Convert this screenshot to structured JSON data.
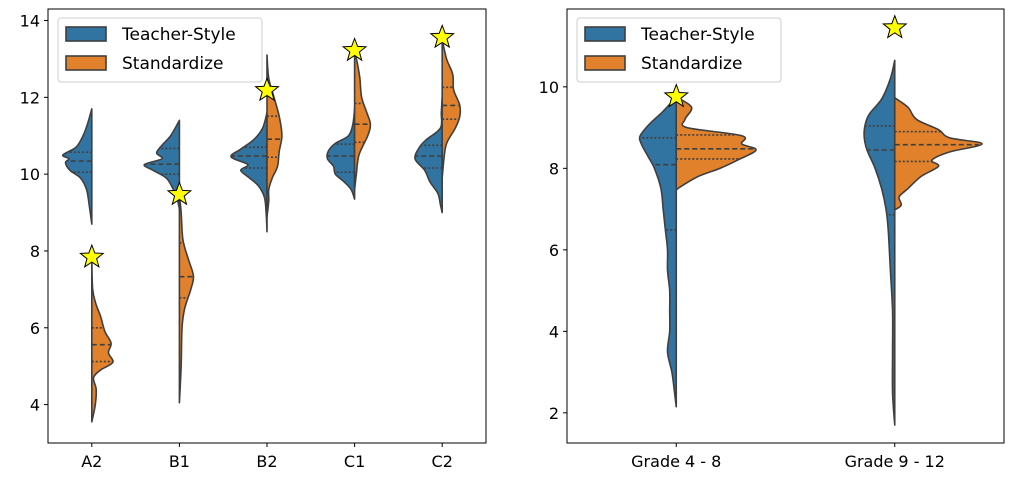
{
  "colors": {
    "Teacher-Style": "#3274a1",
    "Standardize": "#e1812c",
    "edge": "#3f3f3f",
    "star": "#ffff00"
  },
  "chart_data": [
    {
      "type": "violin",
      "split": true,
      "title": "",
      "xlabel": "",
      "ylabel": "",
      "ylim": [
        3.0,
        14.3
      ],
      "yticks": [
        4,
        6,
        8,
        10,
        12,
        14
      ],
      "categories": [
        "A2",
        "B1",
        "B2",
        "C1",
        "C2"
      ],
      "legend": {
        "position": "top-left",
        "entries": [
          "Teacher-Style",
          "Standardize"
        ]
      },
      "grid": false,
      "series": [
        {
          "name": "Teacher-Style",
          "violins": [
            {
              "quartiles": [
                10.05,
                10.34,
                10.57
              ],
              "density": [
                [
                  8.7,
                  0
                ],
                [
                  9.2,
                  0.03
                ],
                [
                  9.6,
                  0.06
                ],
                [
                  9.9,
                  0.13
                ],
                [
                  10.1,
                  0.25
                ],
                [
                  10.3,
                  0.3
                ],
                [
                  10.4,
                  0.26
                ],
                [
                  10.5,
                  0.33
                ],
                [
                  10.7,
                  0.18
                ],
                [
                  11.0,
                  0.1
                ],
                [
                  11.3,
                  0.05
                ],
                [
                  11.7,
                  0
                ]
              ]
            },
            {
              "quartiles": [
                10.0,
                10.26,
                10.67
              ],
              "density": [
                [
                  9.1,
                  0
                ],
                [
                  9.4,
                  0.03
                ],
                [
                  9.65,
                  0.08
                ],
                [
                  9.9,
                  0.15
                ],
                [
                  10.1,
                  0.3
                ],
                [
                  10.25,
                  0.4
                ],
                [
                  10.4,
                  0.2
                ],
                [
                  10.55,
                  0.26
                ],
                [
                  10.75,
                  0.2
                ],
                [
                  11.0,
                  0.1
                ],
                [
                  11.4,
                  0
                ]
              ]
            },
            {
              "quartiles": [
                10.16,
                10.47,
                10.7
              ],
              "density": [
                [
                  8.5,
                  0
                ],
                [
                  9.0,
                  0.01
                ],
                [
                  9.4,
                  0.03
                ],
                [
                  9.7,
                  0.1
                ],
                [
                  9.9,
                  0.2
                ],
                [
                  10.1,
                  0.3
                ],
                [
                  10.25,
                  0.22
                ],
                [
                  10.45,
                  0.41
                ],
                [
                  10.65,
                  0.3
                ],
                [
                  10.9,
                  0.15
                ],
                [
                  11.2,
                  0.05
                ],
                [
                  11.6,
                  0
                ]
              ]
            },
            {
              "quartiles": [
                10.05,
                10.47,
                10.78
              ],
              "density": [
                [
                  9.35,
                  0
                ],
                [
                  9.6,
                  0.04
                ],
                [
                  9.8,
                  0.12
                ],
                [
                  10.0,
                  0.22
                ],
                [
                  10.2,
                  0.24
                ],
                [
                  10.4,
                  0.31
                ],
                [
                  10.6,
                  0.3
                ],
                [
                  10.8,
                  0.22
                ],
                [
                  11.0,
                  0.07
                ],
                [
                  11.3,
                  0.02
                ],
                [
                  11.7,
                  0
                ]
              ]
            },
            {
              "quartiles": [
                10.16,
                10.47,
                10.75
              ],
              "density": [
                [
                  9.0,
                  0
                ],
                [
                  9.2,
                  0.02
                ],
                [
                  9.5,
                  0.05
                ],
                [
                  9.8,
                  0.14
                ],
                [
                  10.1,
                  0.2
                ],
                [
                  10.4,
                  0.31
                ],
                [
                  10.7,
                  0.26
                ],
                [
                  10.9,
                  0.18
                ],
                [
                  11.2,
                  0.02
                ],
                [
                  11.6,
                  0.01
                ],
                [
                  12.0,
                  0
                ]
              ]
            }
          ]
        },
        {
          "name": "Standardize",
          "violins": [
            {
              "quartiles": [
                5.12,
                5.56,
                6.0
              ],
              "density": [
                [
                  3.55,
                  0
                ],
                [
                  4.0,
                  0.04
                ],
                [
                  4.4,
                  0.05
                ],
                [
                  4.7,
                  0.02
                ],
                [
                  4.9,
                  0.1
                ],
                [
                  5.1,
                  0.24
                ],
                [
                  5.35,
                  0.19
                ],
                [
                  5.6,
                  0.22
                ],
                [
                  5.9,
                  0.15
                ],
                [
                  6.3,
                  0.1
                ],
                [
                  6.6,
                  0.05
                ],
                [
                  7.0,
                  0.01
                ],
                [
                  7.8,
                  0
                ]
              ]
            },
            {
              "quartiles": [
                6.78,
                7.33,
                8.21
              ],
              "density": [
                [
                  4.05,
                  0
                ],
                [
                  5.0,
                  0.02
                ],
                [
                  6.0,
                  0.03
                ],
                [
                  6.5,
                  0.06
                ],
                [
                  7.0,
                  0.13
                ],
                [
                  7.35,
                  0.16
                ],
                [
                  7.8,
                  0.1
                ],
                [
                  8.3,
                  0.04
                ],
                [
                  9.0,
                  0.02
                ],
                [
                  9.45,
                  0
                ]
              ]
            },
            {
              "quartiles": [
                10.44,
                10.91,
                11.51
              ],
              "density": [
                [
                  8.9,
                  0
                ],
                [
                  9.3,
                  0.02
                ],
                [
                  9.6,
                  0.02
                ],
                [
                  9.9,
                  0.06
                ],
                [
                  10.2,
                  0.12
                ],
                [
                  10.6,
                  0.14
                ],
                [
                  11.0,
                  0.17
                ],
                [
                  11.5,
                  0.14
                ],
                [
                  12.0,
                  0.08
                ],
                [
                  12.5,
                  0.02
                ],
                [
                  13.1,
                  0
                ]
              ]
            },
            {
              "quartiles": [
                10.83,
                11.3,
                11.84
              ],
              "density": [
                [
                  9.6,
                  0
                ],
                [
                  10.0,
                  0.02
                ],
                [
                  10.5,
                  0.05
                ],
                [
                  11.0,
                  0.15
                ],
                [
                  11.3,
                  0.18
                ],
                [
                  11.6,
                  0.14
                ],
                [
                  12.0,
                  0.08
                ],
                [
                  12.5,
                  0.06
                ],
                [
                  12.9,
                  0.03
                ],
                [
                  13.2,
                  0
                ]
              ]
            },
            {
              "quartiles": [
                11.43,
                11.79,
                12.26
              ],
              "density": [
                [
                  9.9,
                  0
                ],
                [
                  10.4,
                  0.02
                ],
                [
                  10.8,
                  0.05
                ],
                [
                  11.2,
                  0.15
                ],
                [
                  11.5,
                  0.2
                ],
                [
                  11.8,
                  0.2
                ],
                [
                  12.2,
                  0.13
                ],
                [
                  12.6,
                  0.12
                ],
                [
                  13.0,
                  0.05
                ],
                [
                  13.5,
                  0
                ]
              ]
            }
          ]
        }
      ],
      "stars": [
        7.84,
        9.47,
        12.18,
        13.22,
        13.56
      ]
    },
    {
      "type": "violin",
      "split": true,
      "title": "",
      "xlabel": "",
      "ylabel": "",
      "ylim": [
        1.26,
        11.91
      ],
      "yticks": [
        2,
        4,
        6,
        8,
        10
      ],
      "categories": [
        "Grade 4 - 8",
        "Grade 9 - 12"
      ],
      "legend": {
        "position": "top-left",
        "entries": [
          "Teacher-Style",
          "Standardize"
        ]
      },
      "grid": false,
      "series": [
        {
          "name": "Teacher-Style",
          "violins": [
            {
              "quartiles": [
                6.49,
                8.09,
                8.75
              ],
              "density": [
                [
                  2.15,
                  0
                ],
                [
                  2.6,
                  0.01
                ],
                [
                  3.0,
                  0.02
                ],
                [
                  3.5,
                  0.04
                ],
                [
                  4.0,
                  0.03
                ],
                [
                  4.5,
                  0.03
                ],
                [
                  5.0,
                  0.03
                ],
                [
                  5.5,
                  0.04
                ],
                [
                  6.0,
                  0.04
                ],
                [
                  6.5,
                  0.05
                ],
                [
                  7.0,
                  0.06
                ],
                [
                  7.5,
                  0.07
                ],
                [
                  8.0,
                  0.1
                ],
                [
                  8.3,
                  0.13
                ],
                [
                  8.6,
                  0.16
                ],
                [
                  8.8,
                  0.165
                ],
                [
                  9.1,
                  0.12
                ],
                [
                  9.4,
                  0.06
                ],
                [
                  9.75,
                  0
                ]
              ]
            },
            {
              "quartiles": [
                6.86,
                8.45,
                9.04
              ],
              "density": [
                [
                  1.7,
                  0
                ],
                [
                  2.5,
                  0.01
                ],
                [
                  3.5,
                  0.01
                ],
                [
                  4.5,
                  0.01
                ],
                [
                  5.5,
                  0.02
                ],
                [
                  6.5,
                  0.03
                ],
                [
                  7.0,
                  0.04
                ],
                [
                  7.5,
                  0.06
                ],
                [
                  8.0,
                  0.09
                ],
                [
                  8.5,
                  0.13
                ],
                [
                  8.9,
                  0.14
                ],
                [
                  9.3,
                  0.12
                ],
                [
                  9.7,
                  0.06
                ],
                [
                  10.2,
                  0.02
                ],
                [
                  10.65,
                  0
                ]
              ]
            }
          ]
        },
        {
          "name": "Standardize",
          "violins": [
            {
              "quartiles": [
                8.23,
                8.48,
                8.82
              ],
              "density": [
                [
                  7.47,
                  0
                ],
                [
                  7.55,
                  0.02
                ],
                [
                  7.8,
                  0.1
                ],
                [
                  8.0,
                  0.2
                ],
                [
                  8.2,
                  0.28
                ],
                [
                  8.45,
                  0.365
                ],
                [
                  8.6,
                  0.3
                ],
                [
                  8.8,
                  0.3
                ],
                [
                  9.0,
                  0.05
                ],
                [
                  9.2,
                  0.04
                ],
                [
                  9.5,
                  0.07
                ],
                [
                  9.75,
                  0
                ]
              ]
            },
            {
              "quartiles": [
                8.17,
                8.58,
                8.9
              ],
              "density": [
                [
                  6.98,
                  0
                ],
                [
                  7.1,
                  0.03
                ],
                [
                  7.3,
                  0.02
                ],
                [
                  7.5,
                  0.06
                ],
                [
                  7.8,
                  0.12
                ],
                [
                  8.05,
                  0.2
                ],
                [
                  8.2,
                  0.17
                ],
                [
                  8.4,
                  0.25
                ],
                [
                  8.6,
                  0.4
                ],
                [
                  8.75,
                  0.25
                ],
                [
                  8.95,
                  0.2
                ],
                [
                  9.2,
                  0.1
                ],
                [
                  9.5,
                  0.06
                ],
                [
                  9.73,
                  0
                ]
              ]
            }
          ]
        }
      ],
      "stars": [
        9.76,
        11.45
      ]
    }
  ]
}
